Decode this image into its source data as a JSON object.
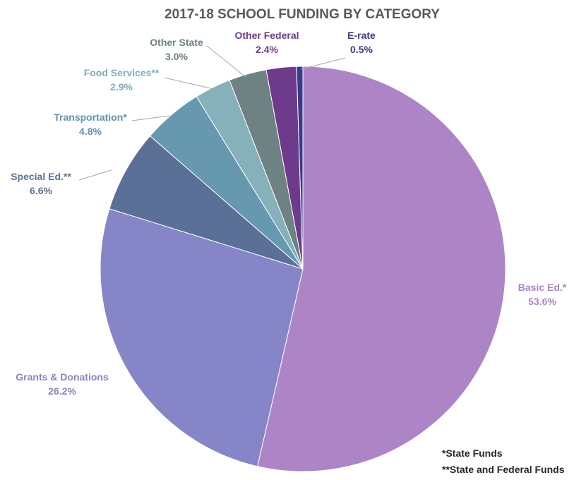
{
  "chart_data": {
    "type": "pie",
    "title": "2017-18 SCHOOL FUNDING BY CATEGORY",
    "slices": [
      {
        "label": "Basic Ed.*",
        "value": 53.6,
        "value_label": "53.6%",
        "color": "#ad85c7"
      },
      {
        "label": "Grants & Donations",
        "value": 26.2,
        "value_label": "26.2%",
        "color": "#8585c7"
      },
      {
        "label": "Special Ed.**",
        "value": 6.6,
        "value_label": "6.6%",
        "color": "#5b7097"
      },
      {
        "label": "Transportation*",
        "value": 4.8,
        "value_label": "4.8%",
        "color": "#6698b0"
      },
      {
        "label": "Food Services**",
        "value": 2.9,
        "value_label": "2.9%",
        "color": "#86b1bb"
      },
      {
        "label": "Other State",
        "value": 3.0,
        "value_label": "3.0%",
        "color": "#6e8183"
      },
      {
        "label": "Other Federal",
        "value": 2.4,
        "value_label": "2.4%",
        "color": "#6e3a8b"
      },
      {
        "label": "E-rate",
        "value": 0.5,
        "value_label": "0.5%",
        "color": "#3a3a8b"
      }
    ],
    "label_colors": {
      "Basic Ed.*": "#ad85c7",
      "Grants & Donations": "#8585c7",
      "Special Ed.**": "#5b7097",
      "Transportation*": "#5f93ad",
      "Food Services**": "#7fadb8",
      "Other State": "#6e8183",
      "Other Federal": "#6e3a8b",
      "E-rate": "#3a3a8b"
    },
    "footnotes": [
      "*State Funds",
      "**State and Federal Funds"
    ]
  }
}
